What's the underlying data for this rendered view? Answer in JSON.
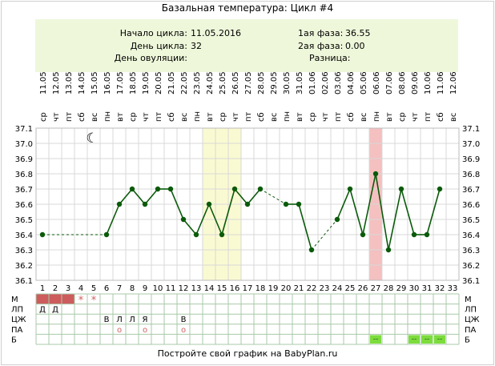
{
  "title": "Базальная температура: Цикл #4",
  "info": {
    "cycle_start_label": "Начало цикла:",
    "cycle_start_value": "11.05.2016",
    "cycle_day_label": "День цикла:",
    "cycle_day_value": "32",
    "ovulation_day_label": "День овуляции:",
    "ovulation_day_value": "",
    "phase1_label": "1ая фаза:",
    "phase1_value": "36.55",
    "phase2_label": "2ая фаза:",
    "phase2_value": "0.00",
    "difference_label": "Разница:",
    "difference_value": ""
  },
  "footer": "Постройте свой график на BabyPlan.ru",
  "chart_data": {
    "type": "line",
    "title": "Базальная температура: Цикл #4",
    "dates": [
      "11.05",
      "12.05",
      "13.05",
      "14.05",
      "15.05",
      "16.05",
      "17.05",
      "18.05",
      "19.05",
      "20.05",
      "21.05",
      "22.05",
      "23.05",
      "24.05",
      "25.05",
      "26.05",
      "27.05",
      "28.05",
      "29.05",
      "30.05",
      "31.05",
      "01.06",
      "02.06",
      "03.06",
      "04.06",
      "05.06",
      "06.06",
      "07.06",
      "08.06",
      "09.06",
      "10.06",
      "11.06",
      "12.06"
    ],
    "weekdays": [
      "ср",
      "чт",
      "пт",
      "сб",
      "вс",
      "пн",
      "вт",
      "ср",
      "чт",
      "пт",
      "сб",
      "вс",
      "пн",
      "вт",
      "ср",
      "чт",
      "пт",
      "сб",
      "вс",
      "пн",
      "вт",
      "ср",
      "чт",
      "пт",
      "сб",
      "вс",
      "пн",
      "вт",
      "ср",
      "чт",
      "пт",
      "сб",
      "вс"
    ],
    "days": [
      1,
      2,
      3,
      4,
      5,
      6,
      7,
      8,
      9,
      10,
      11,
      12,
      13,
      14,
      15,
      16,
      17,
      18,
      19,
      20,
      21,
      22,
      23,
      24,
      25,
      26,
      27,
      28,
      29,
      30,
      31,
      32,
      33
    ],
    "temperatures": [
      36.4,
      null,
      null,
      null,
      null,
      36.4,
      36.6,
      36.7,
      36.6,
      36.7,
      36.7,
      36.5,
      36.4,
      36.6,
      36.4,
      36.7,
      36.6,
      36.7,
      null,
      36.6,
      36.6,
      36.3,
      null,
      36.5,
      36.7,
      36.4,
      36.8,
      36.3,
      36.7,
      36.4,
      36.4,
      36.7,
      null
    ],
    "ylim": [
      36.1,
      37.1
    ],
    "yticks": [
      "37.1",
      "37.0",
      "36.9",
      "36.8",
      "36.7",
      "36.6",
      "36.5",
      "36.4",
      "36.3",
      "36.2",
      "36.1"
    ],
    "grid": true,
    "line_color": "#0a5a0a",
    "highlight_band_days": [
      14,
      16
    ],
    "highlight_band_color": "#fafad2",
    "highlight_day": 27,
    "highlight_day_color": "#f5c0c0",
    "moon_day": 5,
    "rows": [
      {
        "label": "М",
        "cells": {
          "1": "bar",
          "2": "bar",
          "3": "bar",
          "4": "*",
          "5": "*"
        }
      },
      {
        "label": "ЛП",
        "cells": {
          "1": "Д",
          "2": "Д"
        }
      },
      {
        "label": "ЦЖ",
        "cells": {
          "6": "В",
          "7": "Л",
          "8": "Л",
          "9": "Я",
          "12": "В"
        }
      },
      {
        "label": "ПА",
        "cells": {
          "7": "o",
          "9": "o",
          "12": "o"
        }
      },
      {
        "label": "Б",
        "cells": {
          "27": "--",
          "30": "--",
          "31": "--",
          "32": "--"
        }
      }
    ],
    "menstruation_color": "#cd5c5c",
    "test_color": "#7cdc3c"
  }
}
